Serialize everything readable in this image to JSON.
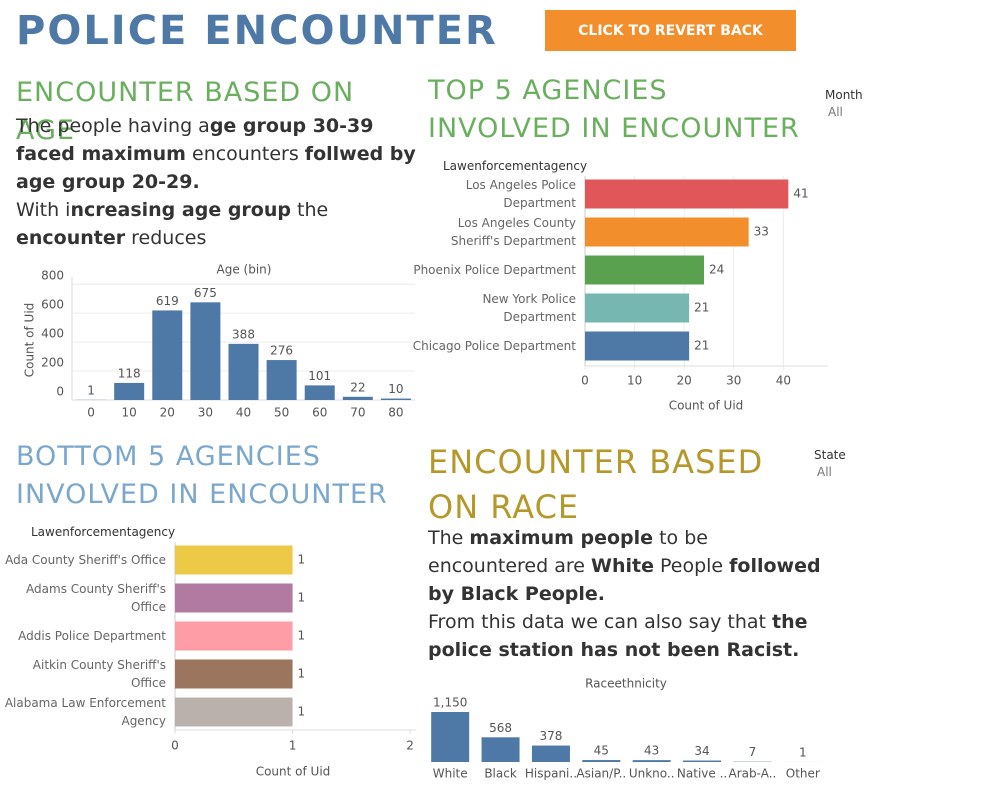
{
  "title": "POLICE ENCOUNTER",
  "button": "CLICK TO REVERT BACK",
  "chart_data": [
    {
      "type": "bar",
      "heading": "ENCOUNTER BASED ON AGE",
      "heading_color": "#6aaf5e",
      "text": [
        [
          {
            "text": "The  people having a",
            "bold": false
          },
          {
            "text": "ge group 30-39 faced maximum",
            "bold": true
          },
          {
            "text": " encounters ",
            "bold": false
          },
          {
            "text": "follwed by age group 20-29.",
            "bold": true
          }
        ],
        [
          {
            "text": "With i",
            "bold": false
          },
          {
            "text": "ncreasing age group",
            "bold": true
          },
          {
            "text": " the ",
            "bold": false
          },
          {
            "text": "encounter",
            "bold": true
          },
          {
            "text": " reduces",
            "bold": false
          }
        ]
      ],
      "x_label": "Age (bin)",
      "y_label": "Count of Uid",
      "categories": [
        0,
        10,
        20,
        30,
        40,
        50,
        60,
        70,
        80
      ],
      "values": [
        1,
        118,
        619,
        675,
        388,
        276,
        101,
        22,
        10
      ],
      "color": "#4e79a7",
      "ylim": [
        0,
        850
      ],
      "yticks": [
        0,
        200,
        400,
        600,
        800
      ],
      "grid": true
    },
    {
      "type": "hbar",
      "heading": "TOP 5 AGENCIES INVOLVED IN ENCOUNTER",
      "heading_color": "#6aaf5e",
      "filter": {
        "label": "Month",
        "value": "All"
      },
      "category_header": "Lawenforcementagency",
      "x_label": "Count of Uid",
      "categories": [
        "Los Angeles Police Department",
        "Los Angeles County Sheriff's Department",
        "Phoenix Police Department",
        "New York Police Department",
        "Chicago Police Department"
      ],
      "values": [
        41,
        33,
        24,
        21,
        21
      ],
      "colors": [
        "#e15759",
        "#f28e2b",
        "#59a14f",
        "#76b7b2",
        "#4e79a7"
      ],
      "xlim": [
        0,
        49
      ],
      "xticks": [
        0,
        10,
        20,
        30,
        40
      ],
      "grid": true
    },
    {
      "type": "hbar",
      "heading": "BOTTOM 5 AGENCIES INVOLVED IN ENCOUNTER",
      "heading_color": "#7ba7cc",
      "category_header": "Lawenforcementagency",
      "x_label": "Count of Uid",
      "categories": [
        "Ada County Sheriff's Office",
        "Adams County Sheriff's Office",
        "Addis Police Department",
        "Aitkin County Sheriff's Office",
        "Alabama Law Enforcement Agency"
      ],
      "values": [
        1,
        1,
        1,
        1,
        1
      ],
      "colors": [
        "#edc948",
        "#b07aa1",
        "#ff9da7",
        "#9c755f",
        "#bab0ac"
      ],
      "xlim": [
        0,
        2.05
      ],
      "xticks": [
        0,
        1,
        2
      ],
      "grid": false
    },
    {
      "type": "bar",
      "heading": "ENCOUNTER BASED ON RACE",
      "heading_color": "#b5982a",
      "filter": {
        "label": "State",
        "value": "All"
      },
      "text": [
        [
          {
            "text": "The ",
            "bold": false
          },
          {
            "text": "maximum people",
            "bold": true
          },
          {
            "text": " to be encountered are ",
            "bold": false
          },
          {
            "text": "White",
            "bold": true
          },
          {
            "text": " People ",
            "bold": false
          },
          {
            "text": "followed by Black People.",
            "bold": true
          }
        ],
        [
          {
            "text": "From this data we can also say that ",
            "bold": false
          },
          {
            "text": "the police station has not been Racist.",
            "bold": true
          }
        ]
      ],
      "x_label": "Raceethnicity",
      "categories": [
        "White",
        "Black",
        "Hispani..",
        "Asian/P..",
        "Unkno..",
        "Native ..",
        "Arab-A..",
        "Other"
      ],
      "values": [
        1150,
        568,
        378,
        45,
        43,
        34,
        7,
        1
      ],
      "value_labels": [
        "1,150",
        "568",
        "378",
        "45",
        "43",
        "34",
        "7",
        "1"
      ],
      "color": "#4e79a7",
      "ylim": [
        0,
        1150
      ],
      "grid": false
    }
  ]
}
